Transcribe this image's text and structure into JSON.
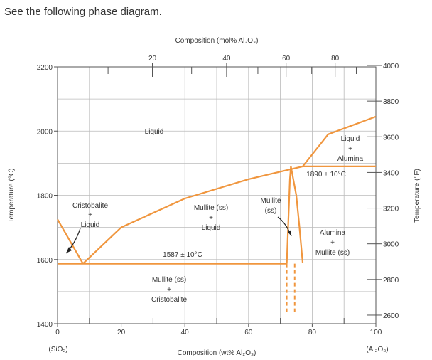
{
  "prompt": "See the following phase diagram.",
  "axes": {
    "top_title": "Composition (mol% Al₂O₃)",
    "bottom_title": "Composition (wt% Al₂O₃)",
    "left_title": "Temperature (°C)",
    "right_title": "Temperature (°F)",
    "bottom_left_note": "(SiO₂)",
    "bottom_right_note": "(Al₂O₃)",
    "x_range": [
      0,
      100
    ],
    "y_range_c": [
      1400,
      2200
    ],
    "bottom_ticks": [
      0,
      20,
      40,
      60,
      80,
      100
    ],
    "left_ticks": [
      1400,
      1600,
      1800,
      2000,
      2200
    ],
    "top_ticks": [
      {
        "mol": 20,
        "wt": 29.8
      },
      {
        "mol": 40,
        "wt": 53.1
      },
      {
        "mol": 60,
        "wt": 71.8
      },
      {
        "mol": 80,
        "wt": 87.2
      }
    ],
    "right_ticks": [
      2600,
      2800,
      3000,
      3200,
      3400,
      3600,
      3800,
      4000
    ]
  },
  "regions": {
    "liquid": "Liquid",
    "cristobalite_liquid": [
      "Cristobalite",
      "+",
      "Liquid"
    ],
    "mullite_liquid": [
      "Mullite (ss)",
      "+",
      "Liquid"
    ],
    "mullite_ss": [
      "Mullite",
      "(ss)"
    ],
    "liquid_alumina": [
      "Liquid",
      "+",
      "Alumina"
    ],
    "alumina_mullite": [
      "Alumina",
      "+",
      "Mullite (ss)"
    ],
    "mullite_cristobalite": [
      "Mullite (ss)",
      "+",
      "Cristobalite"
    ]
  },
  "annotations": {
    "eutectic": "1587 ± 10°C",
    "peritectic": "1890 ± 10°C"
  },
  "chart_data": {
    "type": "line",
    "xlabel": "Composition (wt% Al₂O₃)",
    "ylabel": "Temperature (°C)",
    "xlim": [
      0,
      100
    ],
    "ylim": [
      1400,
      2200
    ],
    "grid": true,
    "series": [
      {
        "x": [
          0,
          8
        ],
        "y": [
          1725,
          1587
        ]
      },
      {
        "x": [
          8,
          20,
          40,
          60,
          77
        ],
        "y": [
          1587,
          1700,
          1790,
          1850,
          1890
        ]
      },
      {
        "x": [
          77,
          85,
          100
        ],
        "y": [
          1890,
          1990,
          2045
        ]
      },
      {
        "x": [
          0,
          72
        ],
        "y": [
          1587,
          1587
        ]
      },
      {
        "x": [
          77,
          100
        ],
        "y": [
          1890,
          1890
        ]
      },
      {
        "x": [
          72,
          72.5,
          73,
          73.3
        ],
        "y": [
          1587,
          1720,
          1850,
          1890
        ]
      },
      {
        "x": [
          73.3,
          75,
          76,
          77
        ],
        "y": [
          1890,
          1800,
          1700,
          1590
        ]
      }
    ]
  }
}
